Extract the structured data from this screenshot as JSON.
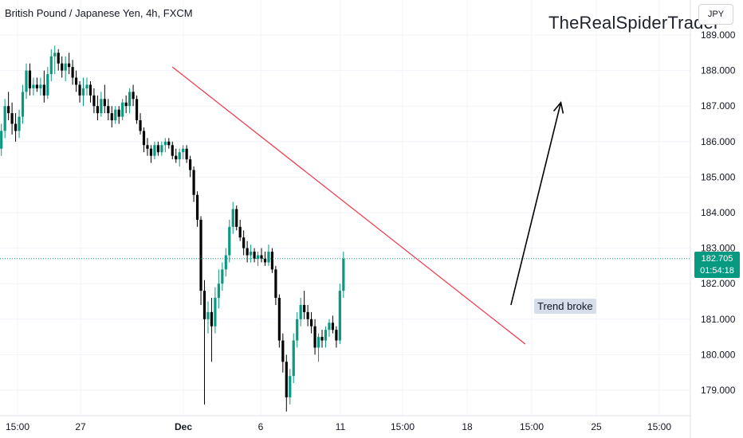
{
  "header": {
    "symbol_label": "British Pound / Japanese Yen, 4h, FXCM",
    "watermark": "TheRealSpiderTrader",
    "currency_button": "JPY"
  },
  "price_tag": {
    "price": "182.705",
    "countdown": "01:54:18"
  },
  "annotation": {
    "text": "Trend broke"
  },
  "colors": {
    "up": "#089981",
    "down": "#000000",
    "trendline": "#f23645",
    "arrow": "#000000",
    "current_price_line": "#089981",
    "grid": "#f0f3fa",
    "axis_text": "#131722"
  },
  "chart_data": {
    "type": "candlestick",
    "title": "British Pound / Japanese Yen, 4h, FXCM",
    "timeframe": "4h",
    "ylim": [
      178.5,
      189.5
    ],
    "y_ticks": [
      "189.000",
      "188.000",
      "187.000",
      "186.000",
      "185.000",
      "184.000",
      "183.000",
      "182.000",
      "181.000",
      "180.000",
      "179.000"
    ],
    "x_ticks": [
      "15:00",
      "27",
      "Dec",
      "6",
      "11",
      "15:00",
      "18",
      "15:00",
      "25",
      "15:00"
    ],
    "current_price": 182.705,
    "grid": true,
    "candles": [
      [
        185.8,
        186.5,
        185.6,
        186.3
      ],
      [
        186.3,
        187.2,
        186.1,
        187.0
      ],
      [
        187.0,
        187.4,
        186.6,
        186.8
      ],
      [
        186.8,
        187.1,
        186.2,
        186.5
      ],
      [
        186.5,
        186.8,
        186.0,
        186.3
      ],
      [
        186.3,
        186.9,
        186.1,
        186.7
      ],
      [
        186.7,
        187.6,
        186.5,
        187.4
      ],
      [
        187.4,
        188.2,
        187.2,
        188.0
      ],
      [
        188.0,
        188.2,
        187.3,
        187.5
      ],
      [
        187.5,
        187.8,
        187.3,
        187.6
      ],
      [
        187.6,
        187.8,
        187.4,
        187.5
      ],
      [
        187.5,
        187.8,
        187.3,
        187.6
      ],
      [
        187.6,
        188.0,
        187.1,
        187.3
      ],
      [
        187.3,
        188.1,
        187.2,
        187.9
      ],
      [
        187.9,
        188.6,
        187.7,
        188.4
      ],
      [
        188.4,
        188.7,
        187.9,
        188.5
      ],
      [
        188.5,
        188.6,
        188.0,
        188.2
      ],
      [
        188.2,
        188.4,
        187.8,
        188.0
      ],
      [
        188.0,
        188.4,
        187.7,
        188.2
      ],
      [
        188.2,
        188.5,
        187.9,
        188.1
      ],
      [
        188.1,
        188.3,
        187.6,
        187.8
      ],
      [
        187.8,
        188.0,
        187.4,
        187.6
      ],
      [
        187.6,
        187.7,
        187.1,
        187.3
      ],
      [
        187.3,
        187.8,
        187.0,
        187.5
      ],
      [
        187.5,
        187.8,
        187.3,
        187.6
      ],
      [
        187.6,
        187.7,
        187.1,
        187.3
      ],
      [
        187.3,
        187.5,
        186.8,
        187.0
      ],
      [
        187.0,
        187.3,
        186.6,
        186.8
      ],
      [
        186.8,
        187.4,
        186.7,
        187.2
      ],
      [
        187.2,
        187.6,
        186.8,
        187.0
      ],
      [
        187.0,
        187.2,
        186.6,
        186.8
      ],
      [
        186.8,
        187.0,
        186.4,
        186.6
      ],
      [
        186.6,
        187.0,
        186.5,
        186.9
      ],
      [
        186.9,
        187.0,
        186.5,
        186.7
      ],
      [
        186.7,
        187.2,
        186.6,
        187.1
      ],
      [
        187.1,
        187.3,
        186.8,
        187.0
      ],
      [
        187.0,
        187.5,
        186.8,
        187.4
      ],
      [
        187.4,
        187.6,
        187.0,
        187.2
      ],
      [
        187.2,
        187.3,
        186.5,
        186.6
      ],
      [
        186.6,
        186.8,
        186.2,
        186.3
      ],
      [
        186.3,
        186.4,
        185.7,
        185.9
      ],
      [
        185.9,
        186.1,
        185.6,
        185.8
      ],
      [
        185.8,
        185.9,
        185.4,
        185.6
      ],
      [
        185.6,
        186.0,
        185.5,
        185.9
      ],
      [
        185.9,
        186.0,
        185.6,
        185.7
      ],
      [
        185.7,
        186.0,
        185.6,
        185.9
      ],
      [
        185.9,
        186.1,
        185.7,
        186.0
      ],
      [
        186.0,
        186.1,
        185.8,
        185.9
      ],
      [
        185.9,
        186.0,
        185.5,
        185.6
      ],
      [
        185.6,
        185.8,
        185.4,
        185.5
      ],
      [
        185.5,
        185.8,
        185.3,
        185.7
      ],
      [
        185.7,
        185.9,
        185.5,
        185.8
      ],
      [
        185.8,
        185.9,
        185.4,
        185.5
      ],
      [
        185.5,
        185.6,
        185.0,
        185.2
      ],
      [
        185.2,
        185.3,
        184.3,
        184.5
      ],
      [
        184.5,
        184.6,
        183.6,
        183.8
      ],
      [
        183.8,
        183.9,
        181.4,
        181.8
      ],
      [
        181.8,
        182.1,
        178.6,
        181.0
      ],
      [
        181.0,
        181.5,
        180.6,
        181.2
      ],
      [
        181.2,
        181.6,
        179.8,
        180.8
      ],
      [
        180.8,
        181.9,
        180.6,
        181.6
      ],
      [
        181.6,
        182.4,
        181.3,
        182.0
      ],
      [
        182.0,
        182.6,
        181.8,
        182.4
      ],
      [
        182.4,
        183.0,
        182.2,
        182.8
      ],
      [
        182.8,
        183.8,
        182.6,
        183.6
      ],
      [
        183.6,
        184.3,
        183.4,
        184.1
      ],
      [
        184.1,
        184.2,
        183.5,
        183.6
      ],
      [
        183.6,
        183.8,
        183.2,
        183.3
      ],
      [
        183.3,
        183.5,
        182.8,
        183.0
      ],
      [
        183.0,
        183.2,
        182.6,
        182.8
      ],
      [
        182.8,
        183.1,
        182.6,
        182.9
      ],
      [
        182.9,
        183.0,
        182.6,
        182.7
      ],
      [
        182.7,
        182.9,
        182.5,
        182.8
      ],
      [
        182.8,
        183.0,
        182.6,
        182.7
      ],
      [
        182.7,
        182.9,
        182.5,
        182.6
      ],
      [
        182.6,
        183.1,
        182.5,
        182.9
      ],
      [
        182.9,
        183.0,
        182.3,
        182.4
      ],
      [
        182.4,
        182.5,
        181.4,
        181.6
      ],
      [
        181.6,
        181.7,
        180.2,
        180.4
      ],
      [
        180.4,
        180.6,
        179.5,
        179.8
      ],
      [
        179.8,
        180.0,
        178.4,
        178.8
      ],
      [
        178.8,
        179.6,
        178.6,
        179.4
      ],
      [
        179.4,
        180.6,
        179.2,
        180.4
      ],
      [
        180.4,
        181.2,
        180.2,
        181.0
      ],
      [
        181.0,
        181.6,
        180.8,
        181.4
      ],
      [
        181.4,
        181.8,
        181.0,
        181.2
      ],
      [
        181.2,
        181.4,
        180.8,
        181.0
      ],
      [
        181.0,
        181.2,
        180.6,
        180.8
      ],
      [
        180.8,
        181.0,
        180.0,
        180.2
      ],
      [
        180.2,
        180.6,
        179.8,
        180.5
      ],
      [
        180.5,
        180.7,
        180.2,
        180.4
      ],
      [
        180.4,
        180.8,
        180.2,
        180.7
      ],
      [
        180.7,
        181.0,
        180.5,
        180.9
      ],
      [
        180.9,
        181.1,
        180.6,
        180.7
      ],
      [
        180.7,
        180.8,
        180.2,
        180.4
      ],
      [
        180.4,
        182.0,
        180.3,
        181.8
      ],
      [
        181.8,
        182.9,
        181.6,
        182.7
      ]
    ],
    "trendline": {
      "from": {
        "bar": 48,
        "price": 188.1
      },
      "to": {
        "bar": 147,
        "price": 180.3
      },
      "extends_bars": true
    },
    "arrow": {
      "from": {
        "bar": 143,
        "price": 181.4
      },
      "to": {
        "bar": 157,
        "price": 187.1
      }
    }
  }
}
